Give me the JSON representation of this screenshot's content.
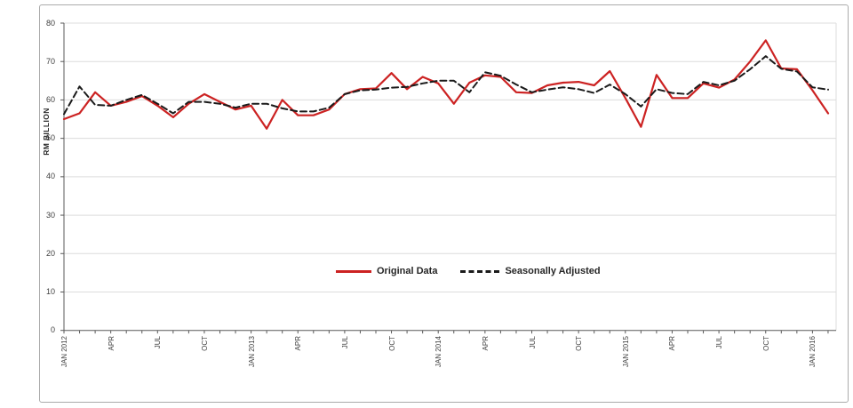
{
  "figure": {
    "y_axis_title": "RM BILLION",
    "background_color": "#ffffff",
    "border_color": "#ababab"
  },
  "legend": {
    "items": [
      {
        "label": "Original Data",
        "color": "#cc2222",
        "style": "solid"
      },
      {
        "label": "Seasonally Adjusted",
        "color": "#1a1a1a",
        "style": "dashed"
      }
    ],
    "position": "center-inside-plot"
  },
  "chart_data": {
    "type": "line",
    "title": "",
    "xlabel": "",
    "ylabel": "RM BILLION",
    "ylim": [
      0,
      80
    ],
    "y_ticks": [
      0,
      10,
      20,
      30,
      40,
      50,
      60,
      70,
      80
    ],
    "grid": true,
    "x": [
      "Jan 2012",
      "Feb 2012",
      "Mar 2012",
      "Apr 2012",
      "May 2012",
      "Jun 2012",
      "Jul 2012",
      "Aug 2012",
      "Sep 2012",
      "Oct 2012",
      "Nov 2012",
      "Dec 2012",
      "Jan 2013",
      "Feb 2013",
      "Mar 2013",
      "Apr 2013",
      "May 2013",
      "Jun 2013",
      "Jul 2013",
      "Aug 2013",
      "Sep 2013",
      "Oct 2013",
      "Nov 2013",
      "Dec 2013",
      "Jan 2014",
      "Feb 2014",
      "Mar 2014",
      "Apr 2014",
      "May 2014",
      "Jun 2014",
      "Jul 2014",
      "Aug 2014",
      "Sep 2014",
      "Oct 2014",
      "Nov 2014",
      "Dec 2014",
      "Jan 2015",
      "Feb 2015",
      "Mar 2015",
      "Apr 2015",
      "May 2015",
      "Jun 2015",
      "Jul 2015",
      "Aug 2015",
      "Sep 2015",
      "Oct 2015",
      "Nov 2015",
      "Dec 2015",
      "Jan 2016",
      "Feb 2016"
    ],
    "x_tick_labels": [
      "JAN 2012",
      "APR",
      "JUL",
      "OCT",
      "JAN 2013",
      "APR",
      "JUL",
      "OCT",
      "JAN 2014",
      "APR",
      "JUL",
      "OCT",
      "JAN 2015",
      "APR",
      "JUL",
      "OCT",
      "JAN 2016"
    ],
    "x_tick_every": 3,
    "series": [
      {
        "name": "Original Data",
        "color": "#cc2222",
        "dash": false,
        "values": [
          55.0,
          56.5,
          62.0,
          58.5,
          59.5,
          61.0,
          58.5,
          55.5,
          59.0,
          61.5,
          59.5,
          57.5,
          58.5,
          52.5,
          60.0,
          56.0,
          56.0,
          57.5,
          61.5,
          62.8,
          63.0,
          67.0,
          62.8,
          66.0,
          64.3,
          59.0,
          64.5,
          66.4,
          66.0,
          62.0,
          61.8,
          63.8,
          64.5,
          64.7,
          63.8,
          67.5,
          60.5,
          53.0,
          66.5,
          60.5,
          60.5,
          64.3,
          63.2,
          65.3,
          70.0,
          75.5,
          68.2,
          68.0,
          62.5,
          56.5
        ]
      },
      {
        "name": "Seasonally Adjusted",
        "color": "#1a1a1a",
        "dash": true,
        "values": [
          56.3,
          63.5,
          58.7,
          58.5,
          60.0,
          61.3,
          59.0,
          56.5,
          59.5,
          59.5,
          59.0,
          58.0,
          59.0,
          59.0,
          57.8,
          57.0,
          57.0,
          58.0,
          61.5,
          62.5,
          62.7,
          63.2,
          63.4,
          64.3,
          65.0,
          65.0,
          62.0,
          67.2,
          66.3,
          64.0,
          62.0,
          62.7,
          63.3,
          62.8,
          61.8,
          64.0,
          61.5,
          58.3,
          62.8,
          61.8,
          61.5,
          64.7,
          63.8,
          65.0,
          68.0,
          71.4,
          68.1,
          67.4,
          63.3,
          62.7
        ]
      }
    ]
  }
}
